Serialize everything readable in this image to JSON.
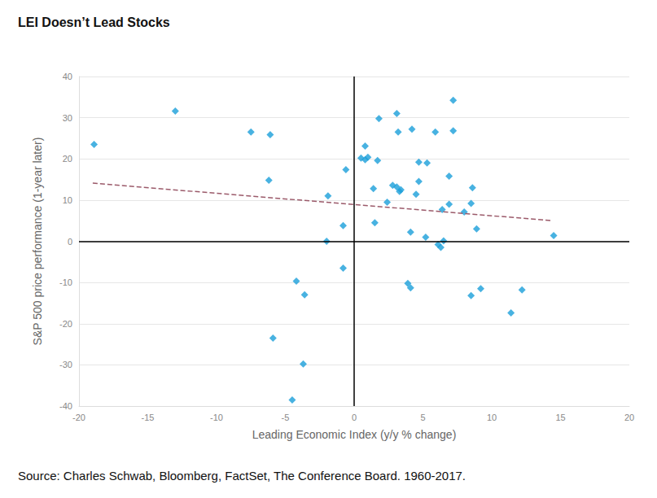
{
  "chart_data": {
    "type": "scatter",
    "title": "LEI Doesn’t Lead Stocks",
    "source": "Source: Charles Schwab, Bloomberg, FactSet, The Conference Board. 1960-2017.",
    "x_label": "Leading Economic Index (y/y % change)",
    "y_label": "S&P 500 price performance (1-year later)",
    "x": [
      -18.9,
      -13.0,
      -7.5,
      -6.1,
      -6.2,
      -1.9,
      -0.6,
      -2.0,
      -0.8,
      -0.8,
      -4.2,
      -3.6,
      -5.9,
      -3.7,
      -4.5,
      0.5,
      0.8,
      0.8,
      1.0,
      1.7,
      1.8,
      1.4,
      1.5,
      2.4,
      2.8,
      3.1,
      3.2,
      3.1,
      3.3,
      3.4,
      4.2,
      4.7,
      5.3,
      4.7,
      4.5,
      4.1,
      3.9,
      4.1,
      5.2,
      5.9,
      7.2,
      7.2,
      6.9,
      6.9,
      6.4,
      6.5,
      6.1,
      6.3,
      8.0,
      8.6,
      8.5,
      8.9,
      9.2,
      8.5,
      12.2,
      11.4,
      14.5
    ],
    "values": [
      23.5,
      31.6,
      26.5,
      25.9,
      14.8,
      11.0,
      17.4,
      0.0,
      3.8,
      -6.5,
      -9.7,
      -13.0,
      -23.5,
      -29.8,
      -38.5,
      20.2,
      23.1,
      19.8,
      20.4,
      19.6,
      29.8,
      12.8,
      4.5,
      9.5,
      13.6,
      31.0,
      26.5,
      13.2,
      12.1,
      12.5,
      27.2,
      19.2,
      19.0,
      14.5,
      11.4,
      2.2,
      -10.2,
      -11.3,
      1.0,
      26.5,
      34.2,
      26.8,
      15.8,
      9.0,
      7.7,
      0.1,
      -0.8,
      -1.5,
      7.1,
      13.0,
      9.2,
      3.0,
      -11.5,
      -13.2,
      -11.8,
      -17.4,
      1.4
    ],
    "color": "#1a9fd9",
    "marker": "diamond",
    "trendline": {
      "x": [
        -19.0,
        14.4
      ],
      "values": [
        14.1,
        5.0
      ],
      "color": "#9b5a6a",
      "line_style": "dashed"
    },
    "xlim": [
      -20,
      20
    ],
    "xticks": [
      -20,
      -15,
      -10,
      -5,
      0,
      5,
      10,
      15,
      20
    ],
    "ylim": [
      -40,
      40
    ],
    "yticks": [
      -40,
      -30,
      -20,
      -10,
      0,
      10,
      20,
      30,
      40
    ],
    "grid": true
  }
}
